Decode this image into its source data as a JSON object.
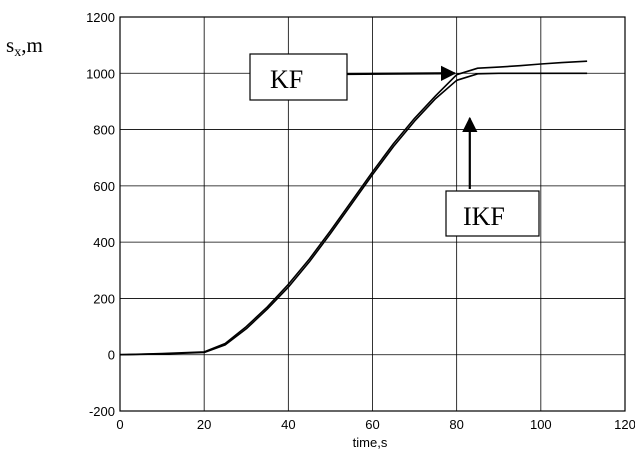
{
  "chart_data": {
    "type": "line",
    "xlabel": "time,s",
    "ylabel_main": "s",
    "ylabel_sub": "x",
    "ylabel_unit": ",m",
    "xlim": [
      0,
      120
    ],
    "ylim": [
      -200,
      1200
    ],
    "xticks": [
      0,
      20,
      40,
      60,
      80,
      100,
      120
    ],
    "yticks": [
      -200,
      0,
      200,
      400,
      600,
      800,
      1000,
      1200
    ],
    "grid": true,
    "series": [
      {
        "name": "KF",
        "x": [
          0,
          10,
          20,
          25,
          30,
          35,
          40,
          45,
          50,
          55,
          60,
          65,
          70,
          75,
          80,
          85,
          90,
          95,
          100,
          105,
          111
        ],
        "y": [
          0,
          4,
          10,
          40,
          100,
          170,
          250,
          340,
          440,
          545,
          650,
          750,
          840,
          920,
          995,
          1018,
          1022,
          1027,
          1033,
          1038,
          1043
        ]
      },
      {
        "name": "IKF",
        "x": [
          0,
          10,
          20,
          25,
          30,
          35,
          40,
          45,
          50,
          55,
          60,
          65,
          70,
          75,
          80,
          85,
          90,
          95,
          100,
          105,
          111
        ],
        "y": [
          0,
          3,
          8,
          35,
          92,
          162,
          240,
          330,
          430,
          535,
          640,
          740,
          830,
          910,
          975,
          998,
          1000,
          1000,
          1000,
          1000,
          1000
        ]
      }
    ],
    "annotations": [
      {
        "label": "KF",
        "target_series": "KF",
        "arrow_target": [
          80,
          1000
        ]
      },
      {
        "label": "IKF",
        "target_series": "IKF",
        "arrow_target": [
          83,
          840
        ]
      }
    ]
  }
}
